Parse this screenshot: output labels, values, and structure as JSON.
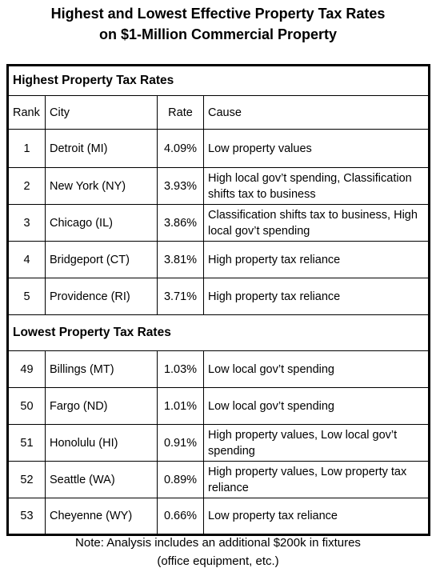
{
  "header": {
    "title_lines": [
      "Highest and Lowest Effective Property Tax Rates",
      "on $1-Million Commercial Property"
    ]
  },
  "table": {
    "columns": [
      "Rank",
      "City",
      "Rate",
      "Cause"
    ],
    "sections": [
      {
        "heading": "Highest Property Tax Rates",
        "rows": [
          [
            "1",
            "Detroit (MI)",
            "4.09%",
            "Low property values"
          ],
          [
            "2",
            "New York (NY)",
            "3.93%",
            "High local gov’t spending, Classification shifts tax to business"
          ],
          [
            "3",
            "Chicago (IL)",
            "3.86%",
            "Classification shifts tax to business, High local gov’t spending"
          ],
          [
            "4",
            "Bridgeport (CT)",
            "3.81%",
            "High property tax reliance"
          ],
          [
            "5",
            "Providence (RI)",
            "3.71%",
            "High property tax reliance"
          ]
        ]
      },
      {
        "heading": "Lowest Property Tax Rates",
        "rows": [
          [
            "49",
            "Billings (MT)",
            "1.03%",
            "Low local gov’t spending"
          ],
          [
            "50",
            "Fargo (ND)",
            "1.01%",
            "Low local gov’t spending"
          ],
          [
            "51",
            "Honolulu (HI)",
            "0.91%",
            "High property values, Low local gov’t spending"
          ],
          [
            "52",
            "Seattle (WA)",
            "0.89%",
            "High property values, Low property tax reliance"
          ],
          [
            "53",
            "Cheyenne (WY)",
            "0.66%",
            "Low property tax reliance"
          ]
        ]
      }
    ]
  },
  "footer": {
    "note_lines": [
      "Note: Analysis includes an additional $200k in fixtures",
      "(office equipment, etc.)"
    ]
  }
}
